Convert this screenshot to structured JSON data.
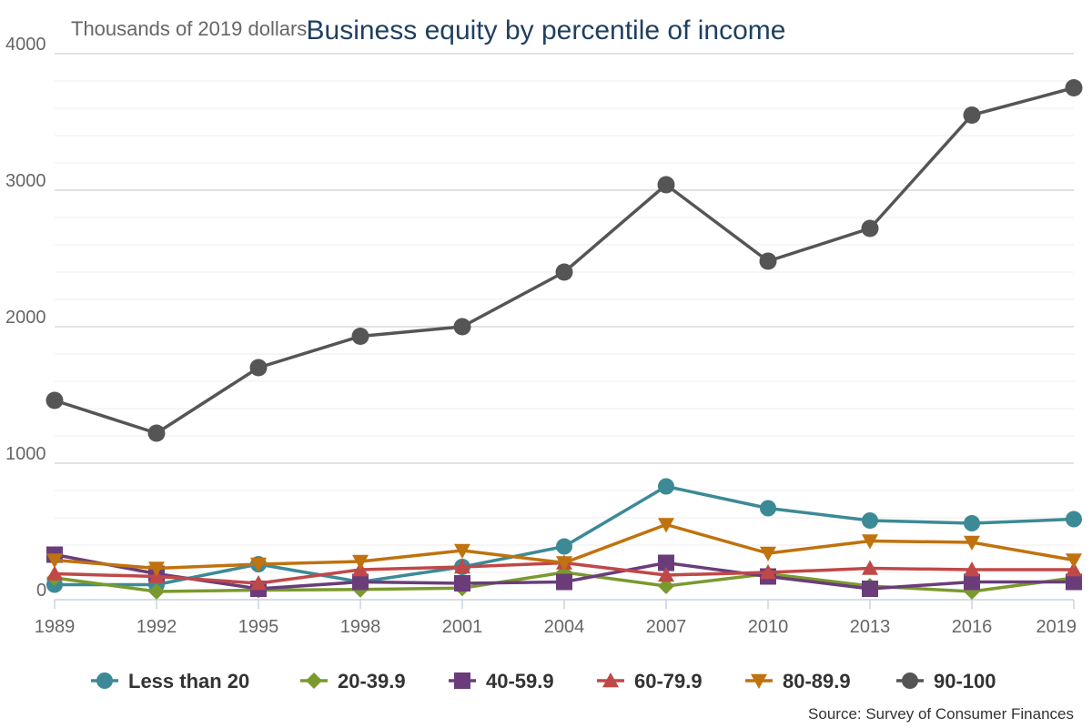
{
  "chart_data": {
    "type": "line",
    "title": "Business equity by percentile of income",
    "ylabel": "Thousands of 2019 dollars",
    "xlabel": "",
    "source": "Source: Survey of Consumer Finances",
    "categories": [
      "1989",
      "1992",
      "1995",
      "1998",
      "2001",
      "2004",
      "2007",
      "2010",
      "2013",
      "2016",
      "2019"
    ],
    "ylim": [
      0,
      4000
    ],
    "yticks": [
      0,
      1000,
      2000,
      3000,
      4000
    ],
    "grid": true,
    "legend_position": "bottom",
    "series": [
      {
        "name": "Less than 20",
        "color": "#3c8a96",
        "marker": "circle",
        "values": [
          110,
          110,
          260,
          130,
          240,
          390,
          830,
          670,
          580,
          560,
          590
        ]
      },
      {
        "name": "20-39.9",
        "color": "#7a9a2e",
        "marker": "diamond",
        "values": [
          160,
          60,
          70,
          75,
          85,
          200,
          100,
          190,
          100,
          60,
          160
        ]
      },
      {
        "name": "40-59.9",
        "color": "#6a3d7a",
        "marker": "square",
        "values": [
          330,
          190,
          80,
          130,
          120,
          130,
          270,
          170,
          80,
          130,
          130
        ]
      },
      {
        "name": "60-79.9",
        "color": "#c04848",
        "marker": "triangle-up",
        "values": [
          190,
          170,
          120,
          220,
          240,
          270,
          180,
          200,
          230,
          220,
          220
        ]
      },
      {
        "name": "80-89.9",
        "color": "#c0720e",
        "marker": "triangle-down",
        "values": [
          290,
          230,
          260,
          280,
          360,
          270,
          550,
          340,
          430,
          420,
          290
        ]
      },
      {
        "name": "90-100",
        "color": "#555555",
        "marker": "circle",
        "values": [
          1460,
          1220,
          1700,
          1930,
          2000,
          2400,
          3040,
          2480,
          2720,
          3550,
          3750
        ]
      }
    ]
  }
}
